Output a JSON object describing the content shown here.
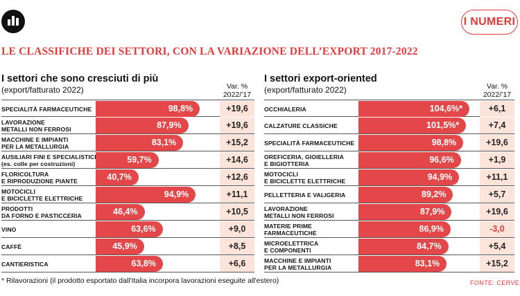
{
  "badge": "I NUMERI",
  "main_title": "LE CLASSIFICHE DEI SETTORI, CON LA VARIAZIONE DELL’EXPORT 2017-2022",
  "footnote": "* Rilavorazioni (il prodotto esportato dall'Italia incorpora lavorazioni eseguite all'estero)",
  "source": "FONTE: CERVED",
  "colors": {
    "accent": "#e23a3a",
    "bar": "#e3474a",
    "var_bg": "#fde4db"
  },
  "chart_data": [
    {
      "type": "bar",
      "title": "I settori che sono cresciuti di più",
      "subtitle": "(export/fatturato 2022)",
      "var_header": [
        "Var. %",
        "2022/’17"
      ],
      "categories": [
        [
          "SPECIALITÀ FARMACEUTICHE"
        ],
        [
          "LAVORAZIONE",
          "METALLI NON FERROSI"
        ],
        [
          "MACCHINE E IMPIANTI",
          "PER LA METALLURGIA"
        ],
        [
          "AUSILIARI FINI E SPECIALISTICI",
          "(es. colle per costruzioni)"
        ],
        [
          "FLORICOLTURA",
          "E RIPRODUZIONE PIANTE"
        ],
        [
          "MOTOCICLI",
          "E BICICLETTE ELETTRICHE"
        ],
        [
          "PRODOTTI",
          "DA FORNO E PASTICCERIA"
        ],
        [
          "VINO"
        ],
        [
          "CAFFÈ"
        ],
        [
          "CANTIERISTICA"
        ]
      ],
      "values": [
        98.8,
        87.9,
        83.1,
        59.7,
        40.7,
        94.9,
        46.4,
        63.6,
        45.9,
        63.8
      ],
      "value_labels": [
        "98,8%",
        "87,9%",
        "83,1%",
        "59,7%",
        "40,7%",
        "94,9%",
        "46,4%",
        "63,6%",
        "45,9%",
        "63,8%"
      ],
      "variation": [
        19.6,
        19.6,
        15.2,
        14.6,
        12.6,
        11.1,
        10.5,
        9.0,
        8.5,
        6.6
      ],
      "variation_labels": [
        "+19,6",
        "+19,6",
        "+15,2",
        "+14,6",
        "+12,6",
        "+11,1",
        "+10,5",
        "+9,0",
        "+8,5",
        "+6,6"
      ]
    },
    {
      "type": "bar",
      "title": "I settori export-oriented",
      "subtitle": "(export/fatturato 2022)",
      "var_header": [
        "Var. %",
        "2022/’17"
      ],
      "categories": [
        [
          "OCCHIALERIA"
        ],
        [
          "CALZATURE CLASSICHE"
        ],
        [
          "SPECIALITÀ FARMACEUTICHE"
        ],
        [
          "OREFICERIA, GIOIELLERIA",
          "E BIGIOTTERIA"
        ],
        [
          "MOTOCICLI",
          "E BICICLETTE ELETTRICHE"
        ],
        [
          "PELLETTERIA E VALIGERIA"
        ],
        [
          "LAVORAZIONE",
          "METALLI NON FERROSI"
        ],
        [
          "MATERIE PRIME",
          "FARMACEUTICHE"
        ],
        [
          "MICROELETTRICA",
          "E COMPONENTI"
        ],
        [
          "MACCHINE E IMPIANTI",
          "PER LA METALLURGIA"
        ]
      ],
      "values": [
        104.6,
        101.5,
        98.8,
        96.6,
        94.9,
        89.2,
        87.9,
        86.9,
        84.7,
        83.1
      ],
      "value_labels": [
        "104,6%*",
        "101,5%*",
        "98,8%",
        "96,6%",
        "94,9%",
        "89,2%",
        "87,9%",
        "86,9%",
        "84,7%",
        "83,1%"
      ],
      "variation": [
        6.1,
        7.4,
        19.6,
        1.9,
        11.1,
        5.7,
        19.6,
        -3.0,
        5.4,
        15.2
      ],
      "variation_labels": [
        "+6,1",
        "+7,4",
        "+19,6",
        "+1,9",
        "+11,1",
        "+5,7",
        "+19,6",
        "-3,0",
        "+5,4",
        "+15,2"
      ]
    }
  ]
}
